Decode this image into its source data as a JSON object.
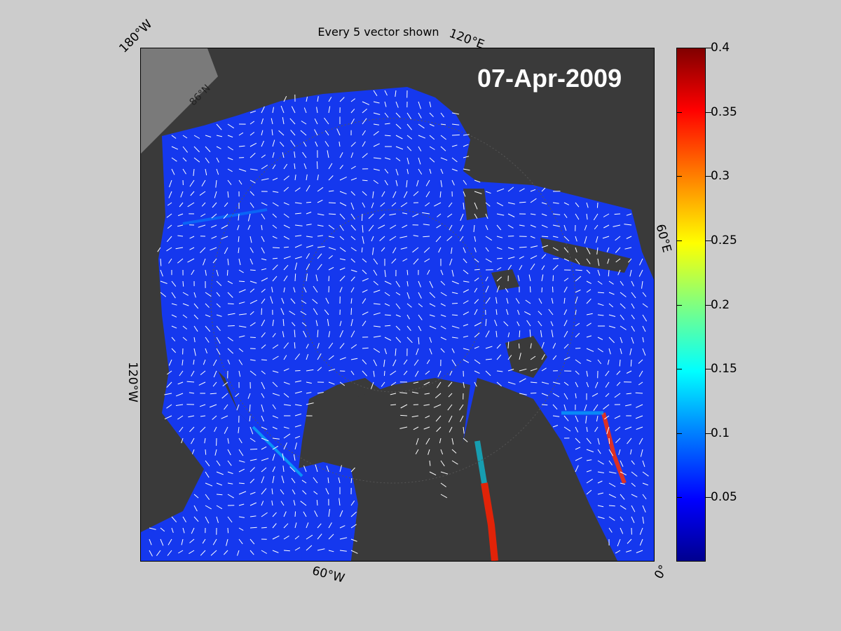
{
  "title": "Every 5 vector shown",
  "date_stamp": "07-Apr-2009",
  "map": {
    "projection": "polar-stereographic-north",
    "land_color": "#3a3a3a",
    "ocean_open_color": "#808080",
    "ice_base_color": "#1a3cf0",
    "vector_color": "#ffffff",
    "lon_labels": {
      "w180": "180°W",
      "e120": "120°E",
      "e60": "60°E",
      "w120": "120°W",
      "w60": "60°W",
      "zero": "0°",
      "lat86": "86°N"
    }
  },
  "colorbar": {
    "colormap": "jet",
    "min": 0,
    "max": 0.4,
    "ticks": [
      "0.4",
      "0.35",
      "0.3",
      "0.25",
      "0.2",
      "0.15",
      "0.1",
      "0.05"
    ]
  }
}
